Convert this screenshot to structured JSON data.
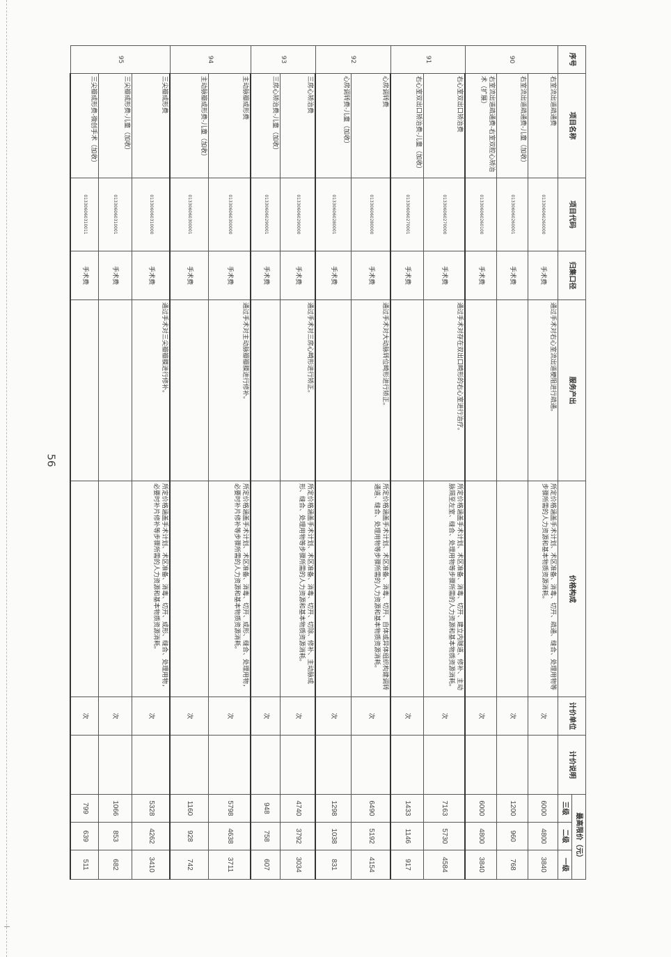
{
  "page_number": "56",
  "header": {
    "no": "序号",
    "name": "项目名称",
    "code": "项目代码",
    "category": "归集口径",
    "service": "服务产出",
    "price_desc": "价格构成",
    "unit": "计价单位",
    "note": "计价说明",
    "max_price": "最高限价（元）",
    "level3": "三级",
    "level2": "二级",
    "level1": "一级"
  },
  "groups": [
    {
      "no": "90",
      "rows": [
        {
          "name": "右室流出道疏通费",
          "code": "013306060260000",
          "category": "手术费",
          "service": "通过手术对右心室流出道梗阻进行疏通。",
          "price_desc": "所定价格涵盖手术计划、术区准备、消毒、切开、疏通、缝合、处理用物等步骤所需的人力资源和基本物质资源消耗。",
          "unit": "次",
          "note": "",
          "p3": "6000",
          "p2": "4800",
          "p1": "3840"
        },
        {
          "name": "右室流出道疏通费-儿童（加收）",
          "code": "013306060260001",
          "category": "手术费",
          "service": "",
          "price_desc": "",
          "unit": "次",
          "note": "",
          "p3": "1200",
          "p2": "960",
          "p1": "768"
        },
        {
          "name": "右室流出道疏通费-右室双腔心矫治术（扩展）",
          "code": "013306060260100",
          "category": "手术费",
          "service": "",
          "price_desc": "",
          "unit": "次",
          "note": "",
          "p3": "6000",
          "p2": "4800",
          "p1": "3840"
        }
      ]
    },
    {
      "no": "91",
      "rows": [
        {
          "name": "右心室双出口矫治费",
          "code": "013306060270000",
          "category": "手术费",
          "service": "通过手术对存在双出口畸形的右心室进行治疗。",
          "price_desc": "所定价格涵盖手术计划、术区准备、消毒、切开、建立内隧道、修补、主动脉隔至左室、缝合、处理用物等步骤所需的人力资源和基本物质资源消耗。",
          "unit": "次",
          "note": "",
          "p3": "7163",
          "p2": "5730",
          "p1": "4584"
        },
        {
          "name": "右心室双出口矫治费-儿童（加收）",
          "code": "013306060270001",
          "category": "手术费",
          "service": "",
          "price_desc": "",
          "unit": "次",
          "note": "",
          "p3": "1433",
          "p2": "1146",
          "p1": "917"
        }
      ]
    },
    {
      "no": "92",
      "rows": [
        {
          "name": "心房调转费",
          "code": "013306060280000",
          "category": "手术费",
          "service": "通过手术对大动脉转位畸形进行矫正。",
          "price_desc": "所定价格涵盖手术计划、术区准备、消毒、切开、自体或异体组织构建调转通道、缝合、处理用物等步骤所需的人力资源和基本物质资源消耗。",
          "unit": "次",
          "note": "",
          "p3": "6490",
          "p2": "5192",
          "p1": "4154"
        },
        {
          "name": "心房调转费-儿童（加收）",
          "code": "013306060280001",
          "category": "手术费",
          "service": "",
          "price_desc": "",
          "unit": "次",
          "note": "",
          "p3": "1298",
          "p2": "1038",
          "p1": "831"
        }
      ]
    },
    {
      "no": "93",
      "rows": [
        {
          "name": "三房心矫治费",
          "code": "013306060290000",
          "category": "手术费",
          "service": "通过手术对三房心畸形进行矫正。",
          "price_desc": "所定价格涵盖手术计划、术区准备、消毒、切开、切除、修补、主动脉成形、缝合、处理用物等步骤所需的人力资源和基本物质资源消耗。",
          "unit": "次",
          "note": "",
          "p3": "4740",
          "p2": "3792",
          "p1": "3034"
        },
        {
          "name": "三房心矫治费-儿童（加收）",
          "code": "013306060290001",
          "category": "手术费",
          "service": "",
          "price_desc": "",
          "unit": "次",
          "note": "",
          "p3": "948",
          "p2": "758",
          "p1": "607"
        }
      ]
    },
    {
      "no": "94",
      "rows": [
        {
          "name": "主动脉瓣成形费",
          "code": "013306060300000",
          "category": "手术费",
          "service": "通过手术对主动脉瓣瓣膜进行修补。",
          "price_desc": "所定价格涵盖手术计划、术区准备、消毒、切开、成形、缝合、处理用物，必要时补片修补等步骤所需的人力资源和基本物质资源消耗。",
          "unit": "次",
          "note": "",
          "p3": "5798",
          "p2": "4638",
          "p1": "3711"
        },
        {
          "name": "主动脉瓣成形费-儿童（加收）",
          "code": "013306060300001",
          "category": "手术费",
          "service": "",
          "price_desc": "",
          "unit": "次",
          "note": "",
          "p3": "1160",
          "p2": "928",
          "p1": "742"
        }
      ]
    },
    {
      "no": "95",
      "rows": [
        {
          "name": "三尖瓣成形费",
          "code": "013306060310000",
          "category": "手术费",
          "service": "通过手术对三尖瓣瓣膜进行修补。",
          "price_desc": "所定价格涵盖手术计划、术区准备、消毒、切开、成形、缝合、处理用物，必要时补片修补等步骤所需的人力资源和基本物质资源消耗。",
          "unit": "次",
          "note": "",
          "p3": "5328",
          "p2": "4262",
          "p1": "3410"
        },
        {
          "name": "三尖瓣成形费-儿童（加收）",
          "code": "013306060310001",
          "category": "手术费",
          "service": "",
          "price_desc": "",
          "unit": "次",
          "note": "",
          "p3": "1066",
          "p2": "853",
          "p1": "682"
        },
        {
          "name": "三尖瓣成形费-微创手术（加收）",
          "code": "013306060310011",
          "category": "手术费",
          "service": "",
          "price_desc": "",
          "unit": "次",
          "note": "",
          "p3": "799",
          "p2": "639",
          "p1": "511"
        }
      ]
    }
  ]
}
